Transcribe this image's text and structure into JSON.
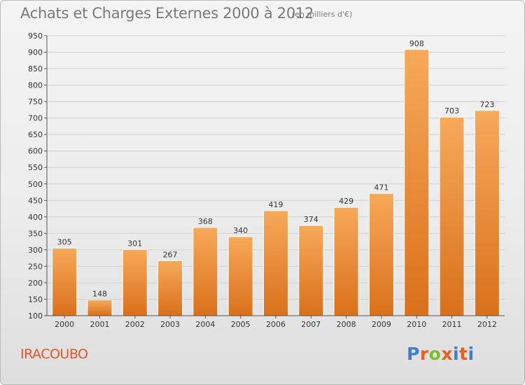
{
  "header": {
    "title": "Achats et Charges Externes 2000 à 2012",
    "unit": "(en milliers d'€)"
  },
  "footer": {
    "commune": "IRACOUBO",
    "logo_letters": [
      "P",
      "r",
      "o",
      "x",
      "i",
      "t",
      "i"
    ],
    "logo_colors": [
      "#3a7fd1",
      "#e9601f",
      "#7cbf2a",
      "#e9601f",
      "#3a7fd1",
      "#e9601f",
      "#3a7fd1"
    ]
  },
  "colors": {
    "bar_light": "#f7a95a",
    "bar_dark": "#d9701b",
    "label_text": "#333333",
    "axis": "#555555",
    "grid": "#d0d0d0"
  },
  "chart_data": {
    "type": "bar",
    "categories": [
      "2000",
      "2001",
      "2002",
      "2003",
      "2004",
      "2005",
      "2006",
      "2007",
      "2008",
      "2009",
      "2010",
      "2011",
      "2012"
    ],
    "values": [
      305,
      148,
      301,
      267,
      368,
      340,
      419,
      374,
      429,
      471,
      908,
      703,
      723
    ],
    "title": "Achats et Charges Externes 2000 à 2012",
    "subtitle": "(en milliers d'€)",
    "xlabel": "",
    "ylabel": "",
    "ylim": [
      100,
      950
    ],
    "yticks": [
      100,
      150,
      200,
      250,
      300,
      350,
      400,
      450,
      500,
      550,
      600,
      650,
      700,
      750,
      800,
      850,
      900,
      950
    ],
    "grid": true,
    "data_labels": true
  }
}
